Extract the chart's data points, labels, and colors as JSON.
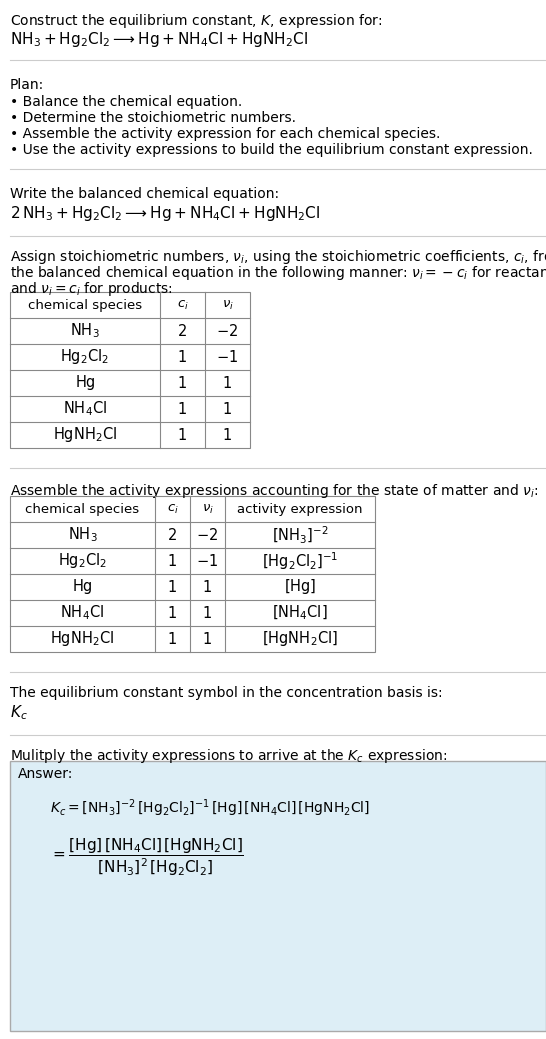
{
  "bg_color": "#ffffff",
  "answer_bg": "#ddeef6",
  "title_line1": "Construct the equilibrium constant, $K$, expression for:",
  "title_line2": "$\\mathrm{NH_3 + Hg_2Cl_2 \\longrightarrow Hg + NH_4Cl + HgNH_2Cl}$",
  "plan_header": "Plan:",
  "plan_items": [
    "\\bullet  Balance the chemical equation.",
    "\\bullet  Determine the stoichiometric numbers.",
    "\\bullet  Assemble the activity expression for each chemical species.",
    "\\bullet  Use the activity expressions to build the equilibrium constant expression."
  ],
  "balanced_header": "Write the balanced chemical equation:",
  "balanced_eq": "$\\mathrm{2\\,NH_3 + Hg_2Cl_2 \\longrightarrow Hg + NH_4Cl + HgNH_2Cl}$",
  "stoich_header1": "Assign stoichiometric numbers, $\\nu_i$, using the stoichiometric coefficients, $c_i$, from",
  "stoich_header2": "the balanced chemical equation in the following manner: $\\nu_i = -c_i$ for reactants",
  "stoich_header3": "and $\\nu_i = c_i$ for products:",
  "table1_cols": [
    "chemical species",
    "$c_i$",
    "$\\nu_i$"
  ],
  "table1_rows": [
    [
      "$\\mathrm{NH_3}$",
      "2",
      "$-2$"
    ],
    [
      "$\\mathrm{Hg_2Cl_2}$",
      "1",
      "$-1$"
    ],
    [
      "$\\mathrm{Hg}$",
      "1",
      "1"
    ],
    [
      "$\\mathrm{NH_4Cl}$",
      "1",
      "1"
    ],
    [
      "$\\mathrm{HgNH_2Cl}$",
      "1",
      "1"
    ]
  ],
  "activity_header": "Assemble the activity expressions accounting for the state of matter and $\\nu_i$:",
  "table2_cols": [
    "chemical species",
    "$c_i$",
    "$\\nu_i$",
    "activity expression"
  ],
  "table2_rows": [
    [
      "$\\mathrm{NH_3}$",
      "2",
      "$-2$",
      "$[\\mathrm{NH_3}]^{-2}$"
    ],
    [
      "$\\mathrm{Hg_2Cl_2}$",
      "1",
      "$-1$",
      "$[\\mathrm{Hg_2Cl_2}]^{-1}$"
    ],
    [
      "$\\mathrm{Hg}$",
      "1",
      "1",
      "$[\\mathrm{Hg}]$"
    ],
    [
      "$\\mathrm{NH_4Cl}$",
      "1",
      "1",
      "$[\\mathrm{NH_4Cl}]$"
    ],
    [
      "$\\mathrm{HgNH_2Cl}$",
      "1",
      "1",
      "$[\\mathrm{HgNH_2Cl}]$"
    ]
  ],
  "kc_header": "The equilibrium constant symbol in the concentration basis is:",
  "kc_symbol": "$K_c$",
  "multiply_header": "Mulitply the activity expressions to arrive at the $K_c$ expression:",
  "answer_label": "Answer:",
  "answer_line1": "$K_c = [\\mathrm{NH_3}]^{-2}\\,[\\mathrm{Hg_2Cl_2}]^{-1}\\,[\\mathrm{Hg}]\\,[\\mathrm{NH_4Cl}]\\,[\\mathrm{HgNH_2Cl}]$",
  "answer_eq": "$= \\dfrac{[\\mathrm{Hg}]\\,[\\mathrm{NH_4Cl}]\\,[\\mathrm{HgNH_2Cl}]}{[\\mathrm{NH_3}]^2\\,[\\mathrm{Hg_2Cl_2}]}$"
}
